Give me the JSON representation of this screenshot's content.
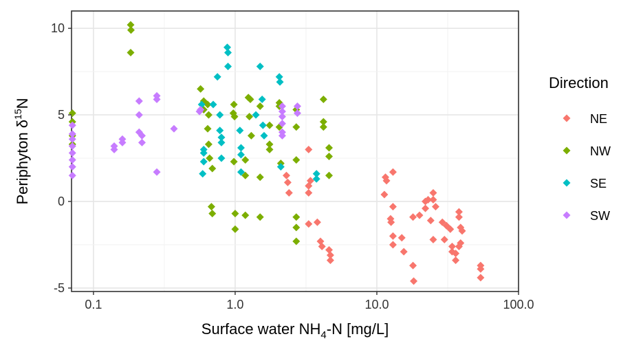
{
  "chart_data": {
    "type": "scatter",
    "x_scale": "log10",
    "xlim": [
      0.07,
      100
    ],
    "ylim": [
      -5.2,
      11
    ],
    "x_ticks": [
      0.1,
      1.0,
      10.0,
      100.0
    ],
    "x_tick_labels": [
      "0.1",
      "1.0",
      "10.0",
      "100.0"
    ],
    "y_ticks": [
      -5,
      0,
      5,
      10
    ],
    "y_tick_labels": [
      "-5",
      "0",
      "5",
      "10"
    ],
    "xlabel_main": "Surface water NH",
    "xlabel_sub": "4",
    "xlabel_tail": "-N [mg/L]",
    "ylabel_main": "Periphyton δ",
    "ylabel_sup": "15",
    "ylabel_tail": "N",
    "grid": true,
    "legend": {
      "title": "Direction",
      "position": "right"
    },
    "series": [
      {
        "name": "NE",
        "color": "#F8766D",
        "points": [
          [
            2.3,
            1.5
          ],
          [
            2.35,
            1.1
          ],
          [
            2.4,
            0.5
          ],
          [
            3.3,
            3.0
          ],
          [
            3.4,
            1.2
          ],
          [
            3.3,
            0.9
          ],
          [
            3.3,
            0.5
          ],
          [
            3.3,
            -1.3
          ],
          [
            3.8,
            -1.2
          ],
          [
            4.0,
            -2.3
          ],
          [
            4.1,
            -2.6
          ],
          [
            4.6,
            -2.8
          ],
          [
            4.7,
            -3.1
          ],
          [
            4.7,
            -3.4
          ],
          [
            11.5,
            1.4
          ],
          [
            11.7,
            1.2
          ],
          [
            13.0,
            1.7
          ],
          [
            11.3,
            0.4
          ],
          [
            13.0,
            -0.3
          ],
          [
            12.5,
            -1.0
          ],
          [
            12.6,
            -1.2
          ],
          [
            13.0,
            -2.0
          ],
          [
            13.0,
            -2.5
          ],
          [
            15.0,
            -2.1
          ],
          [
            15.5,
            -2.9
          ],
          [
            18.0,
            -3.7
          ],
          [
            18.2,
            -4.6
          ],
          [
            18.0,
            -0.9
          ],
          [
            20.0,
            -0.8
          ],
          [
            22.0,
            -0.4
          ],
          [
            22.0,
            0.0
          ],
          [
            23.0,
            0.1
          ],
          [
            25.0,
            0.5
          ],
          [
            25.0,
            0.1
          ],
          [
            26.0,
            -0.3
          ],
          [
            24.0,
            -1.1
          ],
          [
            25.0,
            -2.2
          ],
          [
            29.0,
            -1.2
          ],
          [
            31.0,
            -1.4
          ],
          [
            30.0,
            -2.2
          ],
          [
            33.0,
            -1.6
          ],
          [
            34.0,
            -2.6
          ],
          [
            34.0,
            -2.9
          ],
          [
            36.0,
            -3.0
          ],
          [
            36.0,
            -3.4
          ],
          [
            38.0,
            -0.6
          ],
          [
            38.0,
            -0.9
          ],
          [
            39.0,
            -1.5
          ],
          [
            40.0,
            -1.7
          ],
          [
            39.0,
            -2.4
          ],
          [
            38.0,
            -2.6
          ],
          [
            54.0,
            -3.7
          ],
          [
            54.0,
            -3.9
          ],
          [
            54.0,
            -4.4
          ]
        ]
      },
      {
        "name": "NW",
        "color": "#7CAE00",
        "points": [
          [
            0.071,
            5.1
          ],
          [
            0.071,
            4.6
          ],
          [
            0.071,
            3.8
          ],
          [
            0.071,
            3.3
          ],
          [
            0.183,
            10.2
          ],
          [
            0.184,
            9.9
          ],
          [
            0.183,
            8.6
          ],
          [
            0.57,
            6.5
          ],
          [
            0.6,
            5.8
          ],
          [
            0.6,
            5.3
          ],
          [
            0.64,
            5.6
          ],
          [
            0.65,
            5.0
          ],
          [
            0.64,
            4.2
          ],
          [
            0.65,
            3.3
          ],
          [
            0.66,
            2.5
          ],
          [
            0.69,
            1.9
          ],
          [
            0.68,
            -0.3
          ],
          [
            0.69,
            -0.7
          ],
          [
            0.98,
            5.6
          ],
          [
            0.97,
            5.1
          ],
          [
            0.99,
            4.9
          ],
          [
            0.98,
            2.3
          ],
          [
            1.0,
            -0.7
          ],
          [
            1.0,
            -1.6
          ],
          [
            1.18,
            2.4
          ],
          [
            1.18,
            1.5
          ],
          [
            1.18,
            -0.8
          ],
          [
            1.24,
            6.0
          ],
          [
            1.28,
            5.9
          ],
          [
            1.26,
            4.9
          ],
          [
            1.3,
            3.8
          ],
          [
            1.5,
            5.5
          ],
          [
            1.5,
            1.4
          ],
          [
            1.5,
            -0.9
          ],
          [
            1.75,
            4.4
          ],
          [
            1.75,
            3.3
          ],
          [
            1.75,
            3.0
          ],
          [
            2.05,
            5.7
          ],
          [
            2.05,
            5.5
          ],
          [
            2.05,
            4.3
          ],
          [
            2.1,
            2.2
          ],
          [
            2.7,
            5.3
          ],
          [
            2.7,
            4.3
          ],
          [
            2.7,
            2.4
          ],
          [
            2.7,
            -0.9
          ],
          [
            2.7,
            -1.5
          ],
          [
            2.7,
            -2.3
          ],
          [
            4.2,
            5.9
          ],
          [
            4.2,
            4.6
          ],
          [
            4.2,
            4.3
          ],
          [
            4.6,
            3.1
          ],
          [
            4.6,
            2.6
          ],
          [
            4.6,
            1.5
          ]
        ]
      },
      {
        "name": "SE",
        "color": "#00BFC4",
        "points": [
          [
            0.58,
            5.6
          ],
          [
            0.6,
            3.0
          ],
          [
            0.6,
            2.8
          ],
          [
            0.6,
            2.3
          ],
          [
            0.59,
            1.6
          ],
          [
            0.7,
            5.6
          ],
          [
            0.75,
            7.2
          ],
          [
            0.78,
            5.0
          ],
          [
            0.78,
            4.1
          ],
          [
            0.8,
            3.7
          ],
          [
            0.8,
            3.4
          ],
          [
            0.8,
            2.5
          ],
          [
            0.88,
            8.9
          ],
          [
            0.89,
            8.6
          ],
          [
            0.89,
            7.8
          ],
          [
            1.08,
            4.1
          ],
          [
            1.1,
            3.1
          ],
          [
            1.1,
            2.7
          ],
          [
            1.1,
            1.7
          ],
          [
            1.4,
            5.0
          ],
          [
            1.5,
            7.8
          ],
          [
            1.55,
            5.9
          ],
          [
            1.57,
            4.4
          ],
          [
            1.6,
            3.8
          ],
          [
            2.05,
            7.2
          ],
          [
            2.07,
            6.9
          ],
          [
            2.1,
            2.0
          ],
          [
            3.75,
            1.6
          ],
          [
            3.75,
            1.3
          ]
        ]
      },
      {
        "name": "SW",
        "color": "#C77CFF",
        "points": [
          [
            0.071,
            4.4
          ],
          [
            0.071,
            3.9
          ],
          [
            0.071,
            3.6
          ],
          [
            0.071,
            3.2
          ],
          [
            0.071,
            2.8
          ],
          [
            0.071,
            2.4
          ],
          [
            0.071,
            2.0
          ],
          [
            0.071,
            1.5
          ],
          [
            0.14,
            3.0
          ],
          [
            0.14,
            3.2
          ],
          [
            0.16,
            3.4
          ],
          [
            0.16,
            3.6
          ],
          [
            0.21,
            5.8
          ],
          [
            0.21,
            5.0
          ],
          [
            0.21,
            4.0
          ],
          [
            0.22,
            3.8
          ],
          [
            0.22,
            3.4
          ],
          [
            0.28,
            6.1
          ],
          [
            0.28,
            5.9
          ],
          [
            0.28,
            1.7
          ],
          [
            0.37,
            4.2
          ],
          [
            0.56,
            5.2
          ],
          [
            0.57,
            5.3
          ],
          [
            2.15,
            5.5
          ],
          [
            2.15,
            5.2
          ],
          [
            2.15,
            4.9
          ],
          [
            2.15,
            4.5
          ],
          [
            2.15,
            4.0
          ],
          [
            2.15,
            3.8
          ],
          [
            2.75,
            5.5
          ],
          [
            2.75,
            5.1
          ]
        ]
      }
    ]
  }
}
